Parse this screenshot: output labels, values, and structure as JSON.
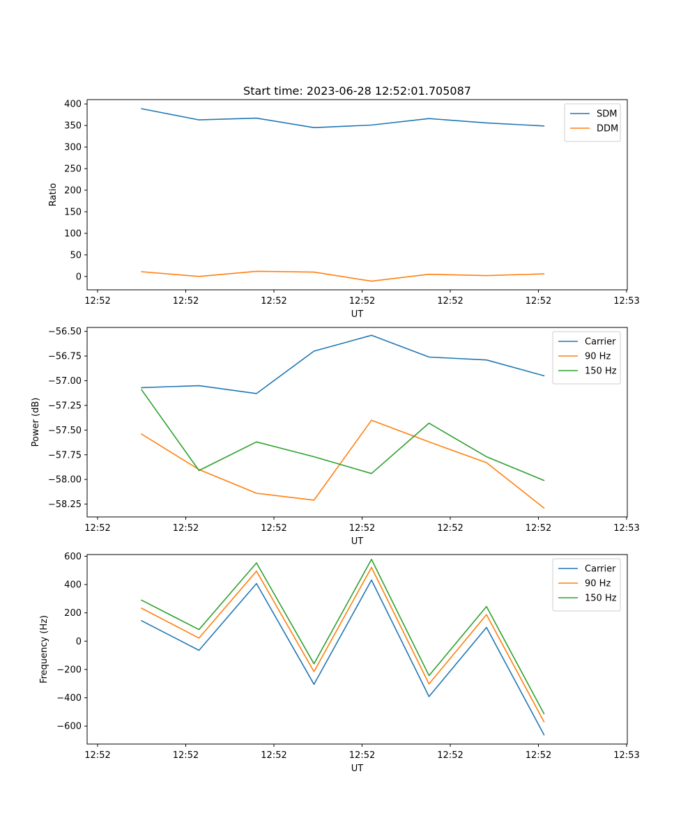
{
  "figure": {
    "title": "Start time: 2023-06-28 12:52:01.705087"
  },
  "chart_data": [
    {
      "type": "line",
      "title": "Start time: 2023-06-28 12:52:01.705087",
      "xlabel": "UT",
      "ylabel": "Ratio",
      "x_tick_labels": [
        "12:52",
        "12:52",
        "12:52",
        "12:52",
        "12:52",
        "12:52",
        "12:53"
      ],
      "y_ticks": [
        0,
        50,
        100,
        150,
        200,
        250,
        300,
        350,
        400
      ],
      "y_tick_labels": [
        "0",
        "50",
        "100",
        "150",
        "200",
        "250",
        "300",
        "350",
        "400"
      ],
      "ylim": [
        -31,
        410
      ],
      "legend_position": "top-right",
      "grid": false,
      "series": [
        {
          "name": "SDM",
          "color": "#1f77b4",
          "values": [
            389,
            363,
            367,
            345,
            351,
            366,
            356,
            349
          ]
        },
        {
          "name": "DDM",
          "color": "#ff7f0e",
          "values": [
            11,
            0,
            12,
            10,
            -11,
            5,
            2,
            6
          ]
        }
      ]
    },
    {
      "type": "line",
      "xlabel": "UT",
      "ylabel": "Power (dB)",
      "x_tick_labels": [
        "12:52",
        "12:52",
        "12:52",
        "12:52",
        "12:52",
        "12:52",
        "12:53"
      ],
      "y_ticks": [
        -56.5,
        -56.75,
        -57.0,
        -57.25,
        -57.5,
        -57.75,
        -58.0,
        -58.25
      ],
      "y_tick_labels": [
        "−56.50",
        "−56.75",
        "−57.00",
        "−57.25",
        "−57.50",
        "−57.75",
        "−58.00",
        "−58.25"
      ],
      "ylim": [
        -58.38,
        -56.46
      ],
      "legend_position": "top-right",
      "grid": false,
      "series": [
        {
          "name": "Carrier",
          "color": "#1f77b4",
          "values": [
            -57.07,
            -57.05,
            -57.13,
            -56.7,
            -56.54,
            -56.76,
            -56.79,
            -56.95
          ]
        },
        {
          "name": "90 Hz",
          "color": "#ff7f0e",
          "values": [
            -57.54,
            -57.9,
            -58.14,
            -58.21,
            -57.4,
            -57.62,
            -57.83,
            -58.29
          ]
        },
        {
          "name": "150 Hz",
          "color": "#2ca02c",
          "values": [
            -57.09,
            -57.91,
            -57.62,
            -57.77,
            -57.94,
            -57.43,
            -57.77,
            -58.01
          ]
        }
      ]
    },
    {
      "type": "line",
      "xlabel": "UT",
      "ylabel": "Frequency (Hz)",
      "x_tick_labels": [
        "12:52",
        "12:52",
        "12:52",
        "12:52",
        "12:52",
        "12:52",
        "12:53"
      ],
      "y_ticks": [
        -600,
        -400,
        -200,
        0,
        200,
        400,
        600
      ],
      "y_tick_labels": [
        "−600",
        "−400",
        "−200",
        "0",
        "200",
        "400",
        "600"
      ],
      "ylim": [
        -727,
        612
      ],
      "legend_position": "top-right",
      "grid": false,
      "series": [
        {
          "name": "Carrier",
          "color": "#1f77b4",
          "values": [
            145,
            -65,
            407,
            -305,
            432,
            -392,
            97,
            -662
          ]
        },
        {
          "name": "90 Hz",
          "color": "#ff7f0e",
          "values": [
            233,
            22,
            495,
            -215,
            521,
            -302,
            187,
            -570
          ]
        },
        {
          "name": "150 Hz",
          "color": "#2ca02c",
          "values": [
            290,
            82,
            553,
            -160,
            578,
            -243,
            245,
            -513
          ]
        }
      ]
    }
  ]
}
